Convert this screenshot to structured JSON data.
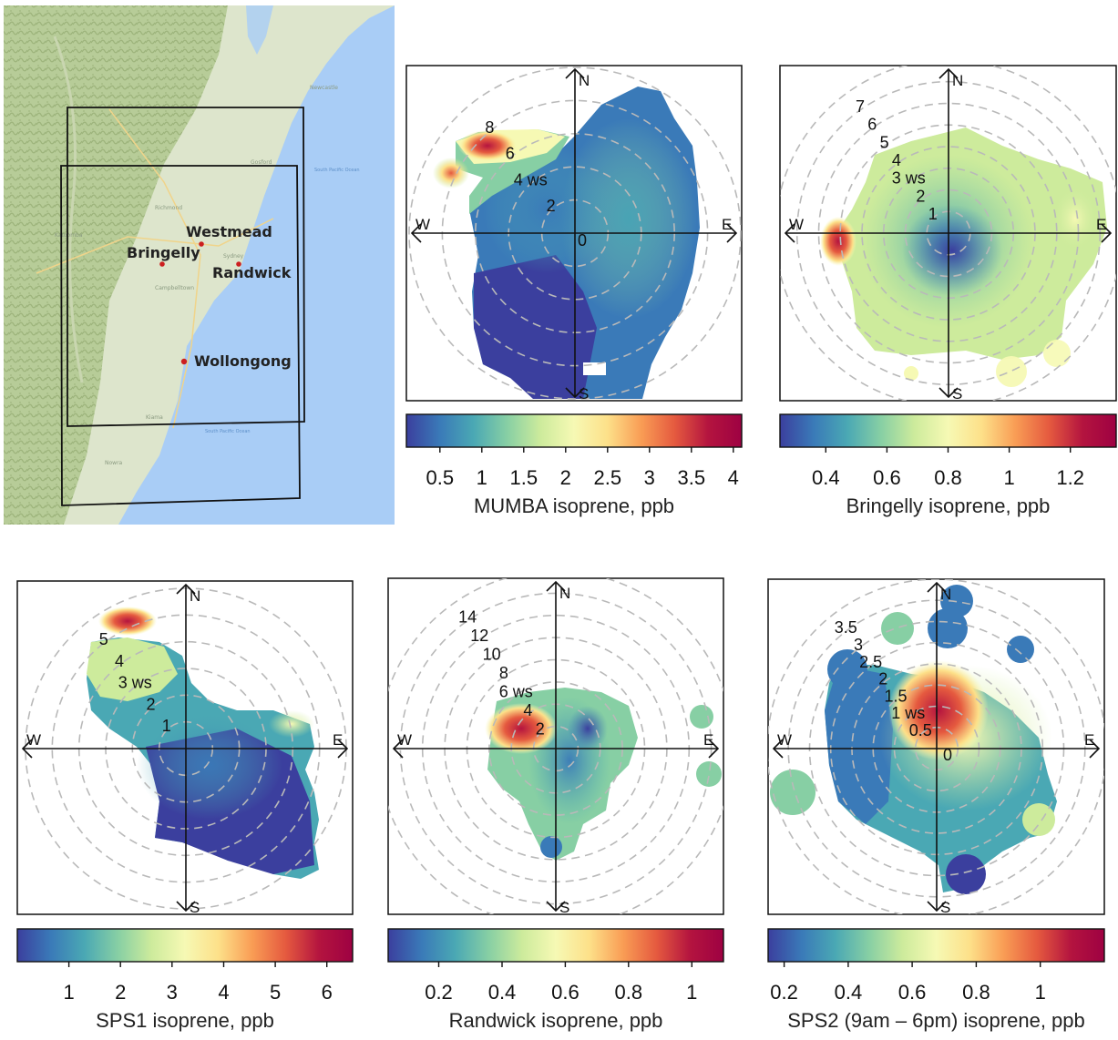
{
  "map": {
    "sites": [
      {
        "name": "Westmead",
        "bullet": true
      },
      {
        "name": "Bringelly",
        "bullet": true
      },
      {
        "name": "Randwick",
        "bullet": true
      },
      {
        "name": "Wollongong",
        "bullet": true
      }
    ],
    "place_names": [
      "Newcastle",
      "Sydney",
      "Campbelltown",
      "Richmond",
      "Nowra",
      "Kiama",
      "Gosford",
      "Katoomba"
    ],
    "ocean_labels": [
      "South Pacific Ocean",
      "South Pacific Ocean"
    ],
    "colors": {
      "ocean": "#a9cdf6",
      "land": "#dde5cc",
      "forest": "#a9c48a",
      "frame": "#111111",
      "site_dot": "#cc1f1f"
    }
  },
  "colormap": [
    "#3b3f9e",
    "#3a7ab8",
    "#4aa8b4",
    "#87cfa4",
    "#cdeb9c",
    "#f6f9b4",
    "#fde089",
    "#f99d55",
    "#e55a3f",
    "#b4143f",
    "#9e0142"
  ],
  "chart_data": [
    {
      "id": "mumba",
      "type": "polar_plot",
      "directions": [
        "N",
        "E",
        "S",
        "W"
      ],
      "ring_values": [
        0,
        2,
        4,
        6,
        8
      ],
      "ring_labels": [
        "0",
        "2",
        "4 ws",
        "6",
        "8"
      ],
      "colorbar": {
        "range": [
          0.1,
          4.1
        ],
        "ticks": [
          0.5,
          1,
          1.5,
          2,
          2.5,
          3,
          3.5,
          4
        ],
        "tick_labels": [
          "0.5",
          "1",
          "1.5",
          "2",
          "2.5",
          "3",
          "3.5",
          "4"
        ],
        "title": "MUMBA isoprene, ppb"
      }
    },
    {
      "id": "bringelly",
      "type": "polar_plot",
      "directions": [
        "N",
        "E",
        "S",
        "W"
      ],
      "ring_values": [
        1,
        2,
        3,
        4,
        5,
        6,
        7
      ],
      "ring_labels": [
        "1",
        "2",
        "3 ws",
        "4",
        "5",
        "6",
        "7"
      ],
      "colorbar": {
        "range": [
          0.25,
          1.35
        ],
        "ticks": [
          0.4,
          0.6,
          0.8,
          1,
          1.2
        ],
        "tick_labels": [
          "0.4",
          "0.6",
          "0.8",
          "1",
          "1.2"
        ],
        "title": "Bringelly isoprene, ppb"
      }
    },
    {
      "id": "sps1",
      "type": "polar_plot",
      "directions": [
        "N",
        "E",
        "S",
        "W"
      ],
      "ring_values": [
        1,
        2,
        3,
        4,
        5
      ],
      "ring_labels": [
        "1",
        "2",
        "3 ws",
        "4",
        "5"
      ],
      "colorbar": {
        "range": [
          0,
          6.5
        ],
        "ticks": [
          1,
          2,
          3,
          4,
          5,
          6
        ],
        "tick_labels": [
          "1",
          "2",
          "3",
          "4",
          "5",
          "6"
        ],
        "title": "SPS1 isoprene, ppb"
      }
    },
    {
      "id": "randwick",
      "type": "polar_plot",
      "directions": [
        "N",
        "E",
        "S",
        "W"
      ],
      "ring_values": [
        2,
        4,
        6,
        8,
        10,
        12,
        14
      ],
      "ring_labels": [
        "2",
        "4",
        "6 ws",
        "8",
        "10",
        "12",
        "14"
      ],
      "colorbar": {
        "range": [
          0.04,
          1.1
        ],
        "ticks": [
          0.2,
          0.4,
          0.6,
          0.8,
          1
        ],
        "tick_labels": [
          "0.2",
          "0.4",
          "0.6",
          "0.8",
          "1"
        ],
        "title": "Randwick isoprene, ppb"
      }
    },
    {
      "id": "sps2",
      "type": "polar_plot",
      "directions": [
        "N",
        "E",
        "S",
        "W"
      ],
      "ring_values": [
        0,
        0.5,
        1,
        1.5,
        2,
        2.5,
        3,
        3.5
      ],
      "ring_labels": [
        "0",
        "0.5",
        "1 ws",
        "1.5",
        "2",
        "2.5",
        "3",
        "3.5"
      ],
      "colorbar": {
        "range": [
          0.15,
          1.2
        ],
        "ticks": [
          0.2,
          0.4,
          0.6,
          0.8,
          1
        ],
        "tick_labels": [
          "0.2",
          "0.4",
          "0.6",
          "0.8",
          "1"
        ],
        "title": "SPS2 (9am – 6pm) isoprene, ppb"
      }
    }
  ]
}
